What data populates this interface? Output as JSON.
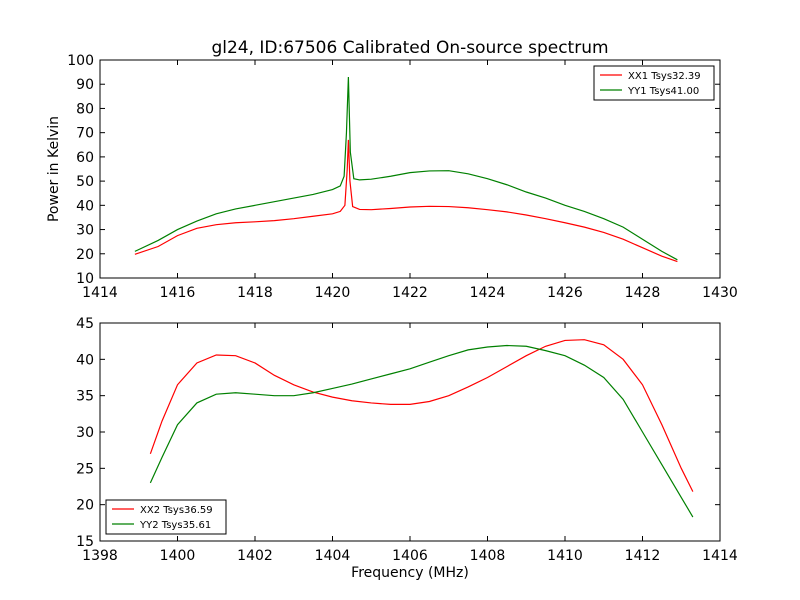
{
  "chart_data": [
    {
      "type": "line",
      "title": "gl24, ID:67506 Calibrated On-source spectrum",
      "xlabel": "",
      "ylabel": "Power in Kelvin",
      "xlim": [
        1414,
        1430
      ],
      "ylim": [
        10,
        100
      ],
      "xticks": [
        "1414",
        "1416",
        "1418",
        "1420",
        "1422",
        "1424",
        "1426",
        "1428",
        "1430"
      ],
      "yticks": [
        "10",
        "20",
        "30",
        "40",
        "50",
        "60",
        "70",
        "80",
        "90",
        "100"
      ],
      "legend_position": "top-right",
      "grid": false,
      "series": [
        {
          "name": "XX1 Tsys32.39",
          "color": "#ff0000",
          "points": [
            [
              1414.9,
              19.8
            ],
            [
              1415.5,
              23.0
            ],
            [
              1416,
              27.5
            ],
            [
              1416.5,
              30.5
            ],
            [
              1417,
              32.0
            ],
            [
              1417.5,
              32.8
            ],
            [
              1418,
              33.2
            ],
            [
              1418.5,
              33.7
            ],
            [
              1419,
              34.5
            ],
            [
              1419.5,
              35.5
            ],
            [
              1420,
              36.5
            ],
            [
              1420.2,
              37.5
            ],
            [
              1420.32,
              40.0
            ],
            [
              1420.38,
              55.0
            ],
            [
              1420.41,
              67.0
            ],
            [
              1420.45,
              50.0
            ],
            [
              1420.52,
              39.5
            ],
            [
              1420.7,
              38.3
            ],
            [
              1421,
              38.2
            ],
            [
              1421.5,
              38.7
            ],
            [
              1422,
              39.3
            ],
            [
              1422.5,
              39.6
            ],
            [
              1423,
              39.5
            ],
            [
              1423.5,
              39.0
            ],
            [
              1424,
              38.2
            ],
            [
              1424.5,
              37.3
            ],
            [
              1425,
              36.0
            ],
            [
              1425.5,
              34.5
            ],
            [
              1426,
              32.8
            ],
            [
              1426.5,
              31.0
            ],
            [
              1427,
              28.8
            ],
            [
              1427.5,
              26.0
            ],
            [
              1428,
              22.5
            ],
            [
              1428.5,
              19.0
            ],
            [
              1428.9,
              16.8
            ]
          ]
        },
        {
          "name": "YY1 Tsys41.00",
          "color": "#008000",
          "points": [
            [
              1414.9,
              21.0
            ],
            [
              1415.5,
              25.5
            ],
            [
              1416,
              30.0
            ],
            [
              1416.5,
              33.5
            ],
            [
              1417,
              36.5
            ],
            [
              1417.5,
              38.5
            ],
            [
              1418,
              40.0
            ],
            [
              1418.5,
              41.5
            ],
            [
              1419,
              43.0
            ],
            [
              1419.5,
              44.5
            ],
            [
              1420,
              46.5
            ],
            [
              1420.2,
              48.0
            ],
            [
              1420.3,
              52.0
            ],
            [
              1420.36,
              70.0
            ],
            [
              1420.41,
              93.0
            ],
            [
              1420.46,
              62.0
            ],
            [
              1420.55,
              51.0
            ],
            [
              1420.7,
              50.5
            ],
            [
              1421,
              50.8
            ],
            [
              1421.5,
              52.0
            ],
            [
              1422,
              53.5
            ],
            [
              1422.5,
              54.2
            ],
            [
              1423,
              54.3
            ],
            [
              1423.5,
              53.0
            ],
            [
              1424,
              51.0
            ],
            [
              1424.5,
              48.5
            ],
            [
              1425,
              45.5
            ],
            [
              1425.5,
              43.0
            ],
            [
              1426,
              40.0
            ],
            [
              1426.5,
              37.5
            ],
            [
              1427,
              34.5
            ],
            [
              1427.5,
              31.0
            ],
            [
              1428,
              26.0
            ],
            [
              1428.5,
              21.0
            ],
            [
              1428.9,
              17.5
            ]
          ]
        }
      ]
    },
    {
      "type": "line",
      "title": "",
      "xlabel": "Frequency (MHz)",
      "ylabel": "",
      "xlim": [
        1398,
        1414
      ],
      "ylim": [
        15,
        45
      ],
      "xticks": [
        "1398",
        "1400",
        "1402",
        "1404",
        "1406",
        "1408",
        "1410",
        "1412",
        "1414"
      ],
      "yticks": [
        "15",
        "20",
        "25",
        "30",
        "35",
        "40",
        "45"
      ],
      "legend_position": "bottom-left",
      "grid": false,
      "series": [
        {
          "name": "XX2 Tsys36.59",
          "color": "#ff0000",
          "points": [
            [
              1399.3,
              27.0
            ],
            [
              1399.6,
              31.5
            ],
            [
              1400,
              36.5
            ],
            [
              1400.5,
              39.5
            ],
            [
              1401,
              40.6
            ],
            [
              1401.5,
              40.5
            ],
            [
              1402,
              39.5
            ],
            [
              1402.5,
              37.8
            ],
            [
              1403,
              36.5
            ],
            [
              1403.5,
              35.5
            ],
            [
              1404,
              34.8
            ],
            [
              1404.5,
              34.3
            ],
            [
              1405,
              34.0
            ],
            [
              1405.5,
              33.8
            ],
            [
              1406,
              33.8
            ],
            [
              1406.5,
              34.2
            ],
            [
              1407,
              35.0
            ],
            [
              1407.5,
              36.2
            ],
            [
              1408,
              37.5
            ],
            [
              1408.5,
              39.0
            ],
            [
              1409,
              40.5
            ],
            [
              1409.5,
              41.8
            ],
            [
              1410,
              42.6
            ],
            [
              1410.5,
              42.7
            ],
            [
              1411,
              42.0
            ],
            [
              1411.5,
              40.0
            ],
            [
              1412,
              36.5
            ],
            [
              1412.5,
              31.0
            ],
            [
              1413,
              25.0
            ],
            [
              1413.3,
              21.8
            ]
          ]
        },
        {
          "name": "YY2 Tsys35.61",
          "color": "#008000",
          "points": [
            [
              1399.3,
              23.0
            ],
            [
              1399.6,
              26.5
            ],
            [
              1400,
              31.0
            ],
            [
              1400.5,
              34.0
            ],
            [
              1401,
              35.2
            ],
            [
              1401.5,
              35.4
            ],
            [
              1402,
              35.2
            ],
            [
              1402.5,
              35.0
            ],
            [
              1403,
              35.0
            ],
            [
              1403.5,
              35.4
            ],
            [
              1404,
              36.0
            ],
            [
              1404.5,
              36.6
            ],
            [
              1405,
              37.3
            ],
            [
              1405.5,
              38.0
            ],
            [
              1406,
              38.7
            ],
            [
              1406.5,
              39.6
            ],
            [
              1407,
              40.5
            ],
            [
              1407.5,
              41.3
            ],
            [
              1408,
              41.7
            ],
            [
              1408.5,
              41.9
            ],
            [
              1409,
              41.8
            ],
            [
              1409.5,
              41.2
            ],
            [
              1410,
              40.5
            ],
            [
              1410.5,
              39.2
            ],
            [
              1411,
              37.5
            ],
            [
              1411.5,
              34.5
            ],
            [
              1412,
              30.0
            ],
            [
              1412.5,
              25.5
            ],
            [
              1413,
              21.0
            ],
            [
              1413.3,
              18.3
            ]
          ]
        }
      ]
    }
  ]
}
